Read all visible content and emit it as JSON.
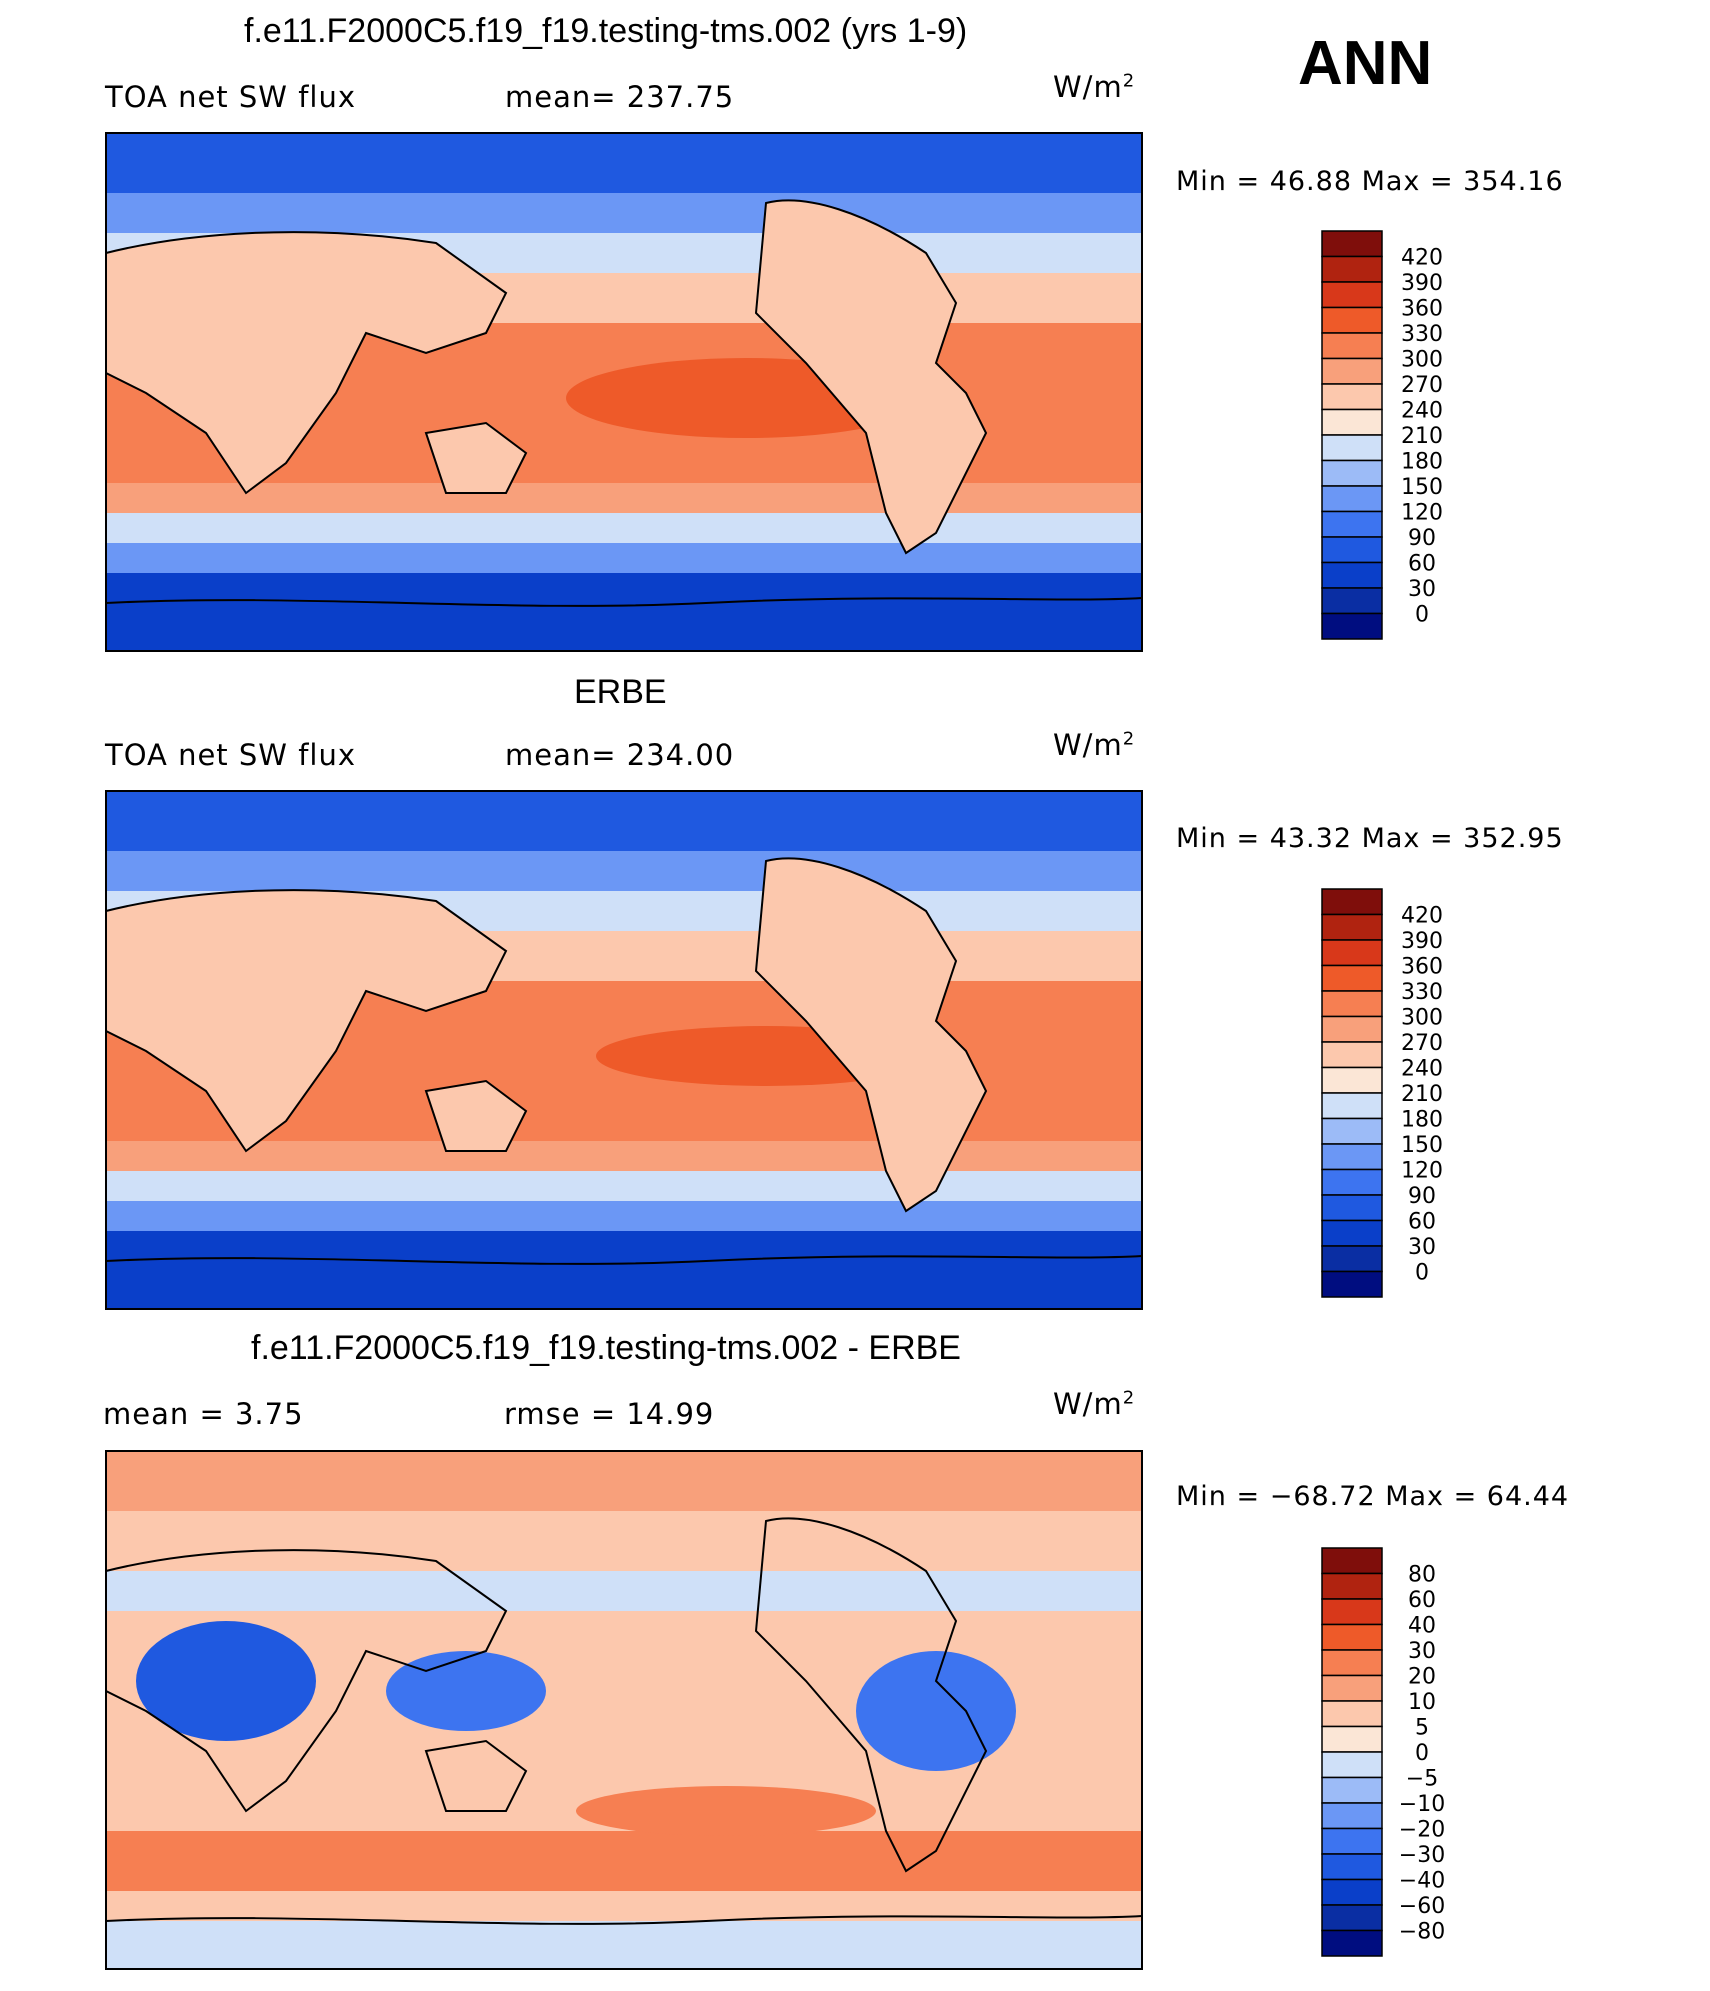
{
  "season": "ANN",
  "units_text": "W/m",
  "units_sup": "2",
  "colors": {
    "abs_scale": [
      "#000d80",
      "#0a2ea3",
      "#0a3fc9",
      "#1f59e0",
      "#3d74f0",
      "#6b97f5",
      "#9cbbf7",
      "#cfe0f8",
      "#fbe6d6",
      "#fcc8ad",
      "#f8a07b",
      "#f67f52",
      "#ee5a29",
      "#d8381a",
      "#b02310",
      "#7f0e0b"
    ],
    "diff_scale": [
      "#000d80",
      "#0a2ea3",
      "#0a3fc9",
      "#1f59e0",
      "#3d74f0",
      "#6b97f5",
      "#9cbbf7",
      "#cfe0f8",
      "#fbe6d6",
      "#fcc8ad",
      "#f8a07b",
      "#f67f52",
      "#ee5a29",
      "#d8381a",
      "#b02310",
      "#7f0e0b"
    ]
  },
  "chart_data": [
    {
      "type": "heatmap",
      "title": "f.e11.F2000C5.f19_f19.testing-tms.002 (yrs 1-9)",
      "variable": "TOA net SW flux",
      "stat_text": "mean=  237.75",
      "mean": 237.75,
      "minmax_text": "Min  =    46.88  Max  =  354.16",
      "min": 46.88,
      "max": 354.16,
      "levels": [
        "420",
        "390",
        "360",
        "330",
        "300",
        "270",
        "240",
        "210",
        "180",
        "150",
        "120",
        "90",
        "60",
        "30",
        "0"
      ],
      "colorbar": "abs_scale"
    },
    {
      "type": "heatmap",
      "title": "ERBE",
      "variable": "TOA net SW flux",
      "stat_text": "mean=  234.00",
      "mean": 234.0,
      "minmax_text": "Min  =    43.32  Max  =  352.95",
      "min": 43.32,
      "max": 352.95,
      "levels": [
        "420",
        "390",
        "360",
        "330",
        "300",
        "270",
        "240",
        "210",
        "180",
        "150",
        "120",
        "90",
        "60",
        "30",
        "0"
      ],
      "colorbar": "abs_scale"
    },
    {
      "type": "heatmap",
      "title": "f.e11.F2000C5.f19_f19.testing-tms.002 - ERBE",
      "mean_text": "mean  =      3.75",
      "mean": 3.75,
      "rmse_text": "rmse  =    14.99",
      "rmse": 14.99,
      "minmax_text": "Min  =  −68.72  Max  =    64.44",
      "min": -68.72,
      "max": 64.44,
      "levels": [
        "80",
        "60",
        "40",
        "30",
        "20",
        "10",
        "5",
        "0",
        "−5",
        "−10",
        "−20",
        "−30",
        "−40",
        "−60",
        "−80"
      ],
      "colorbar": "diff_scale"
    }
  ]
}
